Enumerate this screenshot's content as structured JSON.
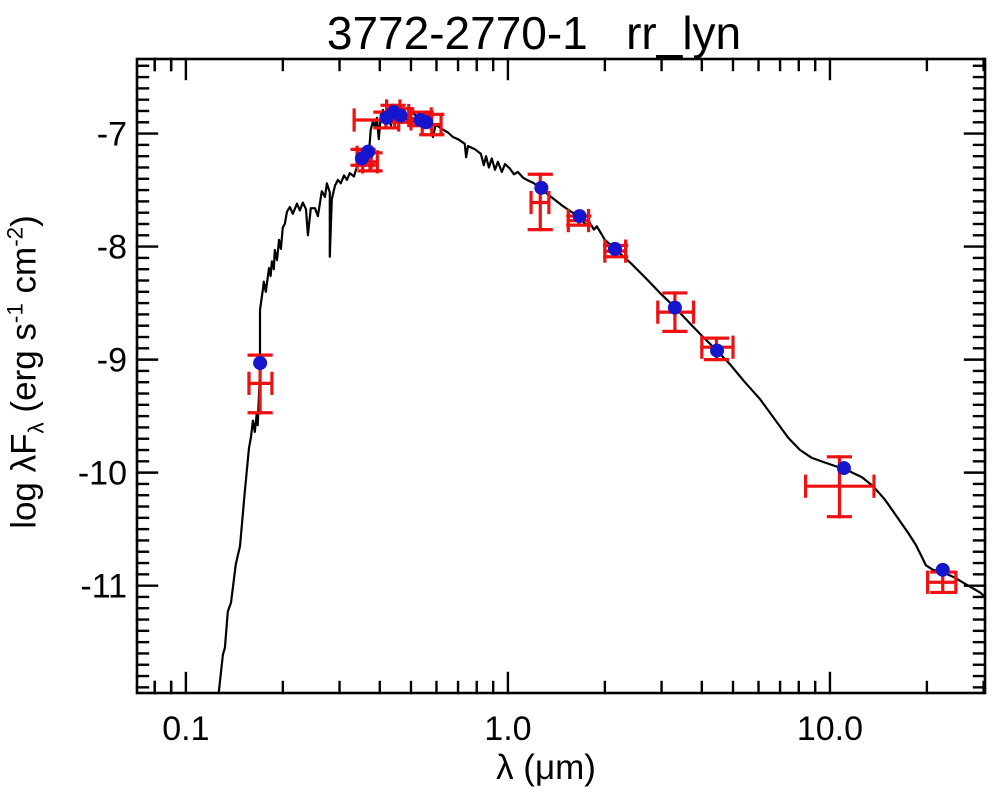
{
  "title": "3772-2770-1   rr_lyn",
  "axes": {
    "xlabel": "λ (μm)",
    "ylabel_parts": {
      "p1": "log λF",
      "sub": "λ",
      "p2": " (erg s",
      "sup1": "-1",
      "p3": " cm",
      "sup2": "-2",
      "p4": ")"
    },
    "x_tick_labels": [
      "0.1",
      "1.0",
      "10.0"
    ],
    "y_tick_labels": [
      "-7",
      "-8",
      "-9",
      "-10",
      "-11"
    ]
  },
  "colors": {
    "frame": "#000000",
    "model_curve": "#000000",
    "model_points": "#1515cd",
    "observed_points": "#ee1111",
    "background": "#ffffff"
  },
  "chart_data": {
    "type": "line",
    "title": "3772-2770-1   rr_lyn",
    "xlabel": "λ (μm)",
    "ylabel": "log λFλ (erg s⁻¹ cm⁻²)",
    "x_scale": "log",
    "xlim": [
      0.0705,
      30.3
    ],
    "ylim": [
      -11.95,
      -6.34
    ],
    "x_major_ticks": [
      0.1,
      1.0,
      10.0
    ],
    "y_major_ticks": [
      -7,
      -8,
      -9,
      -10,
      -11
    ],
    "y_minor_step": 0.1,
    "grid": false,
    "legend": "none",
    "model_curve_loglambda_logflux": [
      [
        -0.898,
        -11.95
      ],
      [
        -0.885,
        -11.61
      ],
      [
        -0.879,
        -11.55
      ],
      [
        -0.87,
        -11.23
      ],
      [
        -0.86,
        -11.15
      ],
      [
        -0.845,
        -10.81
      ],
      [
        -0.832,
        -10.65
      ],
      [
        -0.817,
        -10.17
      ],
      [
        -0.804,
        -9.78
      ],
      [
        -0.798,
        -9.69
      ],
      [
        -0.792,
        -9.54
      ],
      [
        -0.786,
        -9.64
      ],
      [
        -0.78,
        -9.48
      ],
      [
        -0.777,
        -9.58
      ],
      [
        -0.772,
        -9.25
      ],
      [
        -0.77,
        -9.03
      ],
      [
        -0.77,
        -8.56
      ],
      [
        -0.764,
        -8.44
      ],
      [
        -0.761,
        -8.38
      ],
      [
        -0.758,
        -8.31
      ],
      [
        -0.752,
        -8.4
      ],
      [
        -0.742,
        -8.19
      ],
      [
        -0.737,
        -8.26
      ],
      [
        -0.733,
        -8.13
      ],
      [
        -0.727,
        -8.2
      ],
      [
        -0.724,
        -8.03
      ],
      [
        -0.717,
        -8.12
      ],
      [
        -0.711,
        -7.94
      ],
      [
        -0.705,
        -8.02
      ],
      [
        -0.699,
        -7.83
      ],
      [
        -0.693,
        -7.8
      ],
      [
        -0.686,
        -7.69
      ],
      [
        -0.677,
        -7.65
      ],
      [
        -0.668,
        -7.71
      ],
      [
        -0.655,
        -7.62
      ],
      [
        -0.646,
        -7.68
      ],
      [
        -0.637,
        -7.61
      ],
      [
        -0.627,
        -7.67
      ],
      [
        -0.621,
        -7.9
      ],
      [
        -0.612,
        -7.66
      ],
      [
        -0.599,
        -7.66
      ],
      [
        -0.59,
        -7.73
      ],
      [
        -0.578,
        -7.51
      ],
      [
        -0.568,
        -7.56
      ],
      [
        -0.562,
        -7.44
      ],
      [
        -0.553,
        -7.52
      ],
      [
        -0.553,
        -8.09
      ],
      [
        -0.547,
        -7.58
      ],
      [
        -0.537,
        -7.46
      ],
      [
        -0.528,
        -7.41
      ],
      [
        -0.519,
        -7.44
      ],
      [
        -0.509,
        -7.37
      ],
      [
        -0.5,
        -7.41
      ],
      [
        -0.491,
        -7.35
      ],
      [
        -0.478,
        -7.38
      ],
      [
        -0.466,
        -7.26
      ],
      [
        -0.457,
        -7.2
      ],
      [
        -0.447,
        -7.23
      ],
      [
        -0.441,
        -7.14
      ],
      [
        -0.432,
        -7.19
      ],
      [
        -0.426,
        -6.97
      ],
      [
        -0.419,
        -6.89
      ],
      [
        -0.413,
        -6.95
      ],
      [
        -0.407,
        -6.86
      ],
      [
        -0.401,
        -7.05
      ],
      [
        -0.394,
        -6.82
      ],
      [
        -0.388,
        -6.79
      ],
      [
        -0.379,
        -6.95
      ],
      [
        -0.373,
        -6.81
      ],
      [
        -0.363,
        -6.93
      ],
      [
        -0.357,
        -6.8
      ],
      [
        -0.345,
        -6.83
      ],
      [
        -0.332,
        -6.81
      ],
      [
        -0.32,
        -6.84
      ],
      [
        -0.307,
        -6.91
      ],
      [
        -0.298,
        -6.81
      ],
      [
        -0.286,
        -6.84
      ],
      [
        -0.273,
        -6.86
      ],
      [
        -0.258,
        -6.88
      ],
      [
        -0.242,
        -6.9
      ],
      [
        -0.233,
        -7.03
      ],
      [
        -0.224,
        -6.92
      ],
      [
        -0.205,
        -6.96
      ],
      [
        -0.186,
        -6.99
      ],
      [
        -0.171,
        -7.03
      ],
      [
        -0.155,
        -7.05
      ],
      [
        -0.134,
        -7.09
      ],
      [
        -0.13,
        -7.21
      ],
      [
        -0.124,
        -7.11
      ],
      [
        -0.102,
        -7.14
      ],
      [
        -0.084,
        -7.18
      ],
      [
        -0.075,
        -7.28
      ],
      [
        -0.068,
        -7.2
      ],
      [
        -0.059,
        -7.3
      ],
      [
        -0.05,
        -7.22
      ],
      [
        -0.04,
        -7.32
      ],
      [
        -0.031,
        -7.25
      ],
      [
        -0.019,
        -7.34
      ],
      [
        -0.009,
        -7.27
      ],
      [
        0.006,
        -7.31
      ],
      [
        0.019,
        -7.36
      ],
      [
        0.031,
        -7.34
      ],
      [
        0.047,
        -7.39
      ],
      [
        0.059,
        -7.41
      ],
      [
        0.081,
        -7.44
      ],
      [
        0.102,
        -7.49
      ],
      [
        0.134,
        -7.56
      ],
      [
        0.165,
        -7.63
      ],
      [
        0.196,
        -7.69
      ],
      [
        0.224,
        -7.74
      ],
      [
        0.242,
        -7.81
      ],
      [
        0.252,
        -7.78
      ],
      [
        0.267,
        -7.85
      ],
      [
        0.276,
        -7.82
      ],
      [
        0.301,
        -7.94
      ],
      [
        0.332,
        -8.02
      ],
      [
        0.379,
        -8.14
      ],
      [
        0.425,
        -8.27
      ],
      [
        0.472,
        -8.41
      ],
      [
        0.519,
        -8.54
      ],
      [
        0.565,
        -8.68
      ],
      [
        0.606,
        -8.8
      ],
      [
        0.649,
        -8.92
      ],
      [
        0.689,
        -9.04
      ],
      [
        0.736,
        -9.2
      ],
      [
        0.783,
        -9.35
      ],
      [
        0.829,
        -9.53
      ],
      [
        0.87,
        -9.69
      ],
      [
        0.907,
        -9.8
      ],
      [
        0.944,
        -9.87
      ],
      [
        0.984,
        -9.91
      ],
      [
        1.025,
        -9.95
      ],
      [
        1.062,
        -9.99
      ],
      [
        1.099,
        -10.04
      ],
      [
        1.134,
        -10.12
      ],
      [
        1.171,
        -10.24
      ],
      [
        1.208,
        -10.39
      ],
      [
        1.242,
        -10.53
      ],
      [
        1.267,
        -10.64
      ],
      [
        1.286,
        -10.75
      ],
      [
        1.298,
        -10.82
      ],
      [
        1.32,
        -10.86
      ],
      [
        1.351,
        -10.88
      ],
      [
        1.388,
        -10.93
      ],
      [
        1.429,
        -11.0
      ],
      [
        1.466,
        -11.06
      ],
      [
        1.478,
        -11.09
      ]
    ],
    "model_points": {
      "marker": "filled-circle",
      "lambda_um": [
        0.17,
        0.352,
        0.368,
        0.42,
        0.442,
        0.464,
        0.535,
        0.557,
        1.27,
        1.67,
        2.15,
        3.3,
        4.46,
        11.05,
        22.4
      ],
      "log_flux": [
        -9.03,
        -7.22,
        -7.16,
        -6.86,
        -6.81,
        -6.84,
        -6.88,
        -6.9,
        -7.48,
        -7.73,
        -8.02,
        -8.54,
        -8.92,
        -9.96,
        -10.86
      ]
    },
    "observed_points": {
      "marker": "error-bar-cross",
      "points": [
        {
          "lambda": 0.17,
          "log_flux": -9.21,
          "lambda_lo": 0.157,
          "lambda_hi": 0.185,
          "flux_lo": -9.47,
          "flux_hi": -8.96
        },
        {
          "lambda": 0.355,
          "log_flux": -7.21,
          "lambda_lo": 0.34,
          "lambda_hi": 0.376,
          "flux_lo": -7.28,
          "flux_hi": -7.14
        },
        {
          "lambda": 0.373,
          "log_flux": -7.25,
          "lambda_lo": 0.354,
          "lambda_hi": 0.393,
          "flux_lo": -7.33,
          "flux_hi": -7.17
        },
        {
          "lambda": 0.418,
          "log_flux": -6.88,
          "lambda_lo": 0.333,
          "lambda_hi": 0.458,
          "flux_lo": -6.95,
          "flux_hi": -6.81
        },
        {
          "lambda": 0.44,
          "log_flux": -6.8,
          "lambda_lo": 0.42,
          "lambda_hi": 0.462,
          "flux_lo": -6.85,
          "flux_hi": -6.75
        },
        {
          "lambda": 0.468,
          "log_flux": -6.84,
          "lambda_lo": 0.445,
          "lambda_hi": 0.492,
          "flux_lo": -6.9,
          "flux_hi": -6.78
        },
        {
          "lambda": 0.538,
          "log_flux": -6.87,
          "lambda_lo": 0.5,
          "lambda_hi": 0.578,
          "flux_lo": -6.93,
          "flux_hi": -6.81
        },
        {
          "lambda": 0.58,
          "log_flux": -6.92,
          "lambda_lo": 0.542,
          "lambda_hi": 0.62,
          "flux_lo": -7.01,
          "flux_hi": -6.83
        },
        {
          "lambda": 1.26,
          "log_flux": -7.61,
          "lambda_lo": 1.18,
          "lambda_hi": 1.34,
          "flux_lo": -7.85,
          "flux_hi": -7.36
        },
        {
          "lambda": 1.66,
          "log_flux": -7.77,
          "lambda_lo": 1.54,
          "lambda_hi": 1.78,
          "flux_lo": -7.81,
          "flux_hi": -7.73
        },
        {
          "lambda": 2.16,
          "log_flux": -8.04,
          "lambda_lo": 2.0,
          "lambda_hi": 2.32,
          "flux_lo": -8.09,
          "flux_hi": -7.99
        },
        {
          "lambda": 3.3,
          "log_flux": -8.58,
          "lambda_lo": 2.92,
          "lambda_hi": 3.77,
          "flux_lo": -8.75,
          "flux_hi": -8.41
        },
        {
          "lambda": 4.44,
          "log_flux": -8.89,
          "lambda_lo": 4.0,
          "lambda_hi": 5.0,
          "flux_lo": -9.0,
          "flux_hi": -8.81
        },
        {
          "lambda": 10.7,
          "log_flux": -10.12,
          "lambda_lo": 8.4,
          "lambda_hi": 13.7,
          "flux_lo": -10.39,
          "flux_hi": -9.86
        },
        {
          "lambda": 22.4,
          "log_flux": -10.97,
          "lambda_lo": 20.1,
          "lambda_hi": 24.6,
          "flux_lo": -11.06,
          "flux_hi": -10.88
        }
      ]
    }
  }
}
